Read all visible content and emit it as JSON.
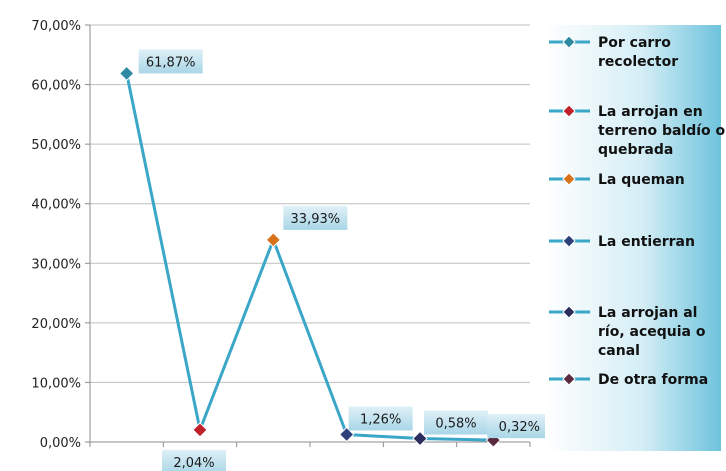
{
  "chart_data": {
    "type": "line",
    "categories": [
      "Por carro recolector",
      "La arrojan en terreno baldío o quebrada",
      "La queman",
      "La entierran",
      "La arrojan al río, acequia o canal",
      "De otra forma"
    ],
    "values": [
      61.87,
      2.04,
      33.93,
      1.26,
      0.58,
      0.32
    ],
    "data_labels": [
      "61,87%",
      "2,04%",
      "33,93%",
      "1,26%",
      "0,58%",
      "0,32%"
    ],
    "ylim": [
      0,
      70
    ],
    "yticks": [
      0,
      10,
      20,
      30,
      40,
      50,
      60,
      70
    ],
    "ytick_labels": [
      "0,00%",
      "10,00%",
      "20,00%",
      "30,00%",
      "40,00%",
      "50,00%",
      "60,00%",
      "70,00%"
    ],
    "grid": true,
    "legend_position": "right",
    "line_color": "#3aa6c8",
    "marker_colors": [
      "#2e8aa0",
      "#c0202a",
      "#d8721a",
      "#2d3f7a",
      "#2b2f5e",
      "#5a2a3e"
    ],
    "legend": [
      {
        "lines": [
          "Por carro",
          "recolector"
        ]
      },
      {
        "lines": [
          "La arrojan en",
          "terreno baldío o",
          "quebrada"
        ]
      },
      {
        "lines": [
          "La queman"
        ]
      },
      {
        "lines": [
          "La entierran"
        ]
      },
      {
        "lines": [
          "La arrojan al",
          "río, acequia o",
          "canal"
        ]
      },
      {
        "lines": [
          "De otra forma"
        ]
      }
    ]
  }
}
